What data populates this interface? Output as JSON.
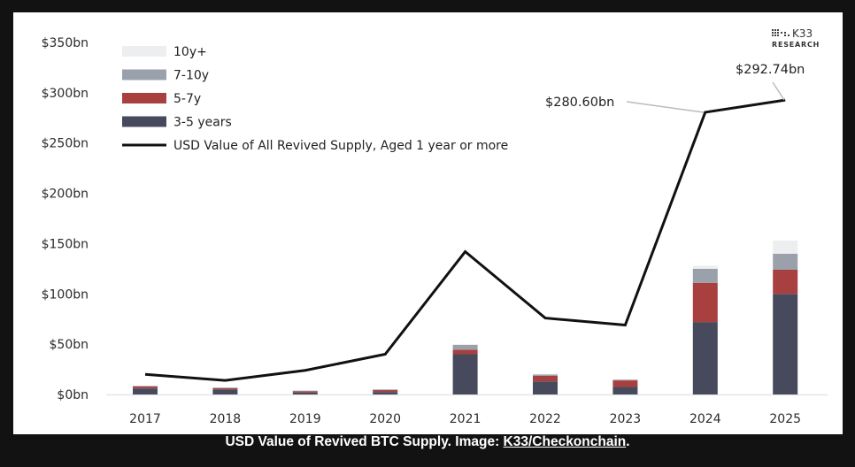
{
  "chart_data": {
    "type": "bar",
    "stacked": true,
    "categories": [
      "2017",
      "2018",
      "2019",
      "2020",
      "2021",
      "2022",
      "2023",
      "2024",
      "2025"
    ],
    "series": [
      {
        "name": "3-5 years",
        "color": "#474a5c",
        "values": [
          6,
          5,
          2,
          2.5,
          40,
          13,
          7.5,
          72,
          100
        ]
      },
      {
        "name": "5-7y",
        "color": "#a8403f",
        "values": [
          2,
          1.5,
          1.5,
          2,
          4.5,
          5.5,
          6.5,
          39,
          24
        ]
      },
      {
        "name": "7-10y",
        "color": "#9aa1ab",
        "values": [
          0.5,
          0.3,
          0.3,
          0.5,
          5,
          1.5,
          1,
          14,
          16
        ]
      },
      {
        "name": "10y+",
        "color": "#eceeef",
        "values": [
          0,
          0,
          0,
          0,
          0.5,
          0.5,
          0.3,
          3,
          13
        ]
      }
    ],
    "line": {
      "name": "USD Value of All Revived Supply, Aged 1 year or more",
      "color": "#111111",
      "values": [
        20,
        14,
        24,
        40,
        142,
        76,
        69,
        280.6,
        292.74
      ]
    },
    "yticks": [
      "$0bn",
      "$50bn",
      "$100bn",
      "$150bn",
      "$200bn",
      "$250bn",
      "$300bn",
      "$350bn"
    ],
    "ylim": [
      0,
      350
    ],
    "legend_order": [
      "10y+",
      "7-10y",
      "5-7y",
      "3-5 years"
    ],
    "legend_placement": "top-left",
    "annotations": {
      "y2024": "$280.60bn",
      "y2025": "$292.74bn"
    },
    "grid": false,
    "title": "",
    "xlabel": "",
    "ylabel": ""
  },
  "logo": {
    "line1": "K33",
    "line2": "RESEARCH"
  },
  "caption": {
    "text": "USD Value of Revived BTC Supply. Image: ",
    "link": "K33/Checkonchain",
    "end": "."
  }
}
